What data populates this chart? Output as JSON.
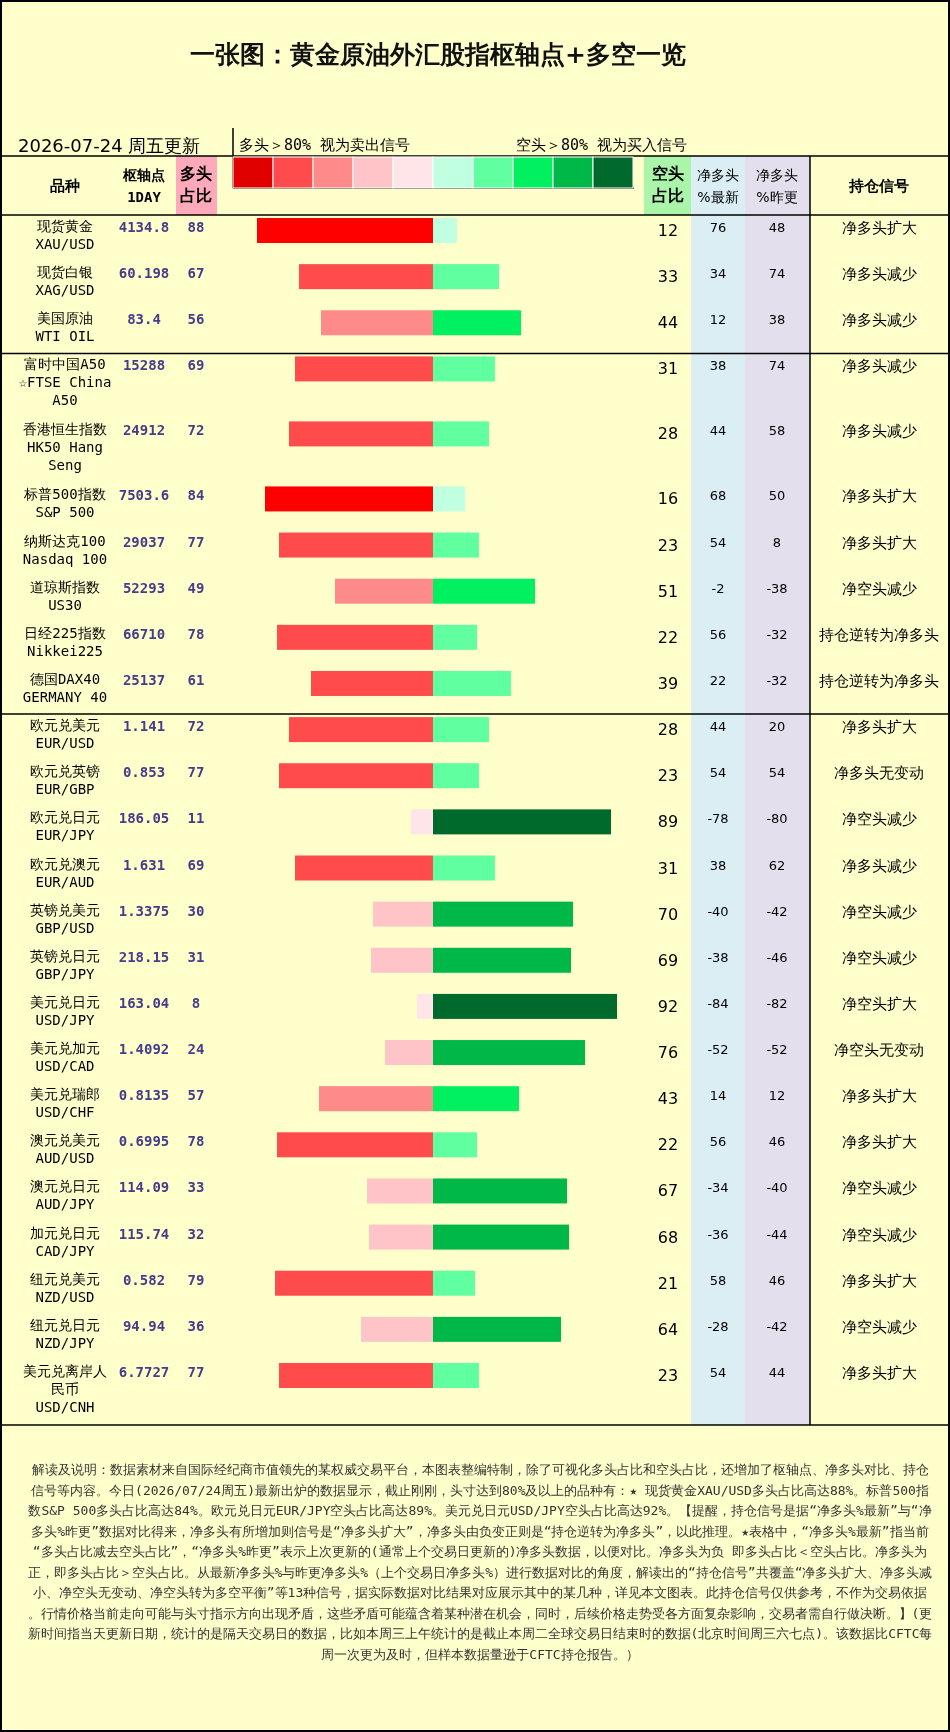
{
  "chart_data": [
    {
      "type": "bar",
      "orientation": "horizontal",
      "title": "一张图：黄金原油外汇股指枢轴点+多空一览",
      "subtitle": "2026-07-24 周五更新",
      "ylabel": "品种",
      "categories": [
        "现货黄金\nXAU/USD",
        "现货白银\nXAG/USD",
        "美国原油\nWTI OIL",
        "富时中国A50\n☆FTSE China A50",
        "香港恒生指数\nHK50 Hang Seng",
        "标普500指数\nS&P 500",
        "纳斯达克100\nNasdaq 100",
        "道琼斯指数\nUS30",
        "日经225指数\nNikkei225",
        "德国DAX40\nGERMANY 40",
        "欧元兑美元\nEUR/USD",
        "欧元兑英镑\nEUR/GBP",
        "欧元兑日元\nEUR/JPY",
        "欧元兑澳元\nEUR/AUD",
        "英镑兑美元\nGBP/USD",
        "英镑兑日元\nGBP/JPY",
        "美元兑日元\nUSD/JPY",
        "美元兑加元\nUSD/CAD",
        "美元兑瑞郎\nUSD/CHF",
        "澳元兑美元\nAUD/USD",
        "澳元兑日元\nAUD/JPY",
        "加元兑日元\nCAD/JPY",
        "纽元兑美元\nNZD/USD",
        "纽元兑日元\nNZD/JPY",
        "美元兑离岸人民币\nUSD/CNH"
      ],
      "tick_labels": "y",
      "data_labels": true,
      "series": [
        {
          "name": "多头占比",
          "values": [
            88,
            67,
            56,
            69,
            72,
            84,
            77,
            49,
            78,
            61,
            72,
            77,
            11,
            69,
            30,
            31,
            8,
            24,
            57,
            78,
            33,
            32,
            79,
            36,
            77
          ],
          "colors": [
            "#ff0000",
            "#ff4b4b",
            "#ff8a8a",
            "#ff4b4b",
            "#ff4b4b",
            "#ff0000",
            "#ff4b4b",
            "#ff8a8a",
            "#ff4b4b",
            "#ff4b4b",
            "#ff4b4b",
            "#ff4b4b",
            "#ffe4ea",
            "#ff4b4b",
            "#ffc4c8",
            "#ffc4c8",
            "#ffe4ea",
            "#ffc4c8",
            "#ff8a8a",
            "#ff4b4b",
            "#ffc4c8",
            "#ffc4c8",
            "#ff4b4b",
            "#ffc4c8",
            "#ff4b4b"
          ]
        }
      ],
      "annotations": [
        "多头＞80% 视为卖出信号",
        "解读及说明：数据素材来自国际经纪商市值领先的某权威交易平台，本图表整编特制，除了可视化多头占比和空头占比，还增加了枢轴点、净多头对比、持仓信号等内容。今日(2026/07/24周五)最新出炉的数据显示，截止刚刚，头寸达到80%及以上的品种有：★ 现货黄金XAU/USD多头占比高达88%。标普500指数S&P 500多头占比高达84%。欧元兑日元EUR/JPY空头占比高达89%。美元兑日元USD/JPY空头占比高达92%。【提醒，持仓信号是据“净多头%最新”与“净多头%昨更”数据对比得来，净多头有所增加则信号是“净多头扩大”，净多头由负变正则是“持仓逆转为净多头”，以此推理。★表格中，“净多头%最新”指当前“多头占比减去空头占比”，“净多头%昨更”表示上次更新的(通常上个交易日更新的)净多头数据，以便对比。净多头为负 即多头占比＜空头占比。净多头为正，即多头占比＞空头占比。从最新净多头%与昨更净多头%（上个交易日净多头%）进行数据对比的角度，解读出的“持仓信号”共覆盖“净多头扩大、净多头减小、净空头无变动、净空头转为多空平衡”等13种信号，据实际数据对比结果对应展示其中的某几种，详见本文图表。此持仓信号仅供参考，不作为交易依据。行情价格当前走向可能与头寸指示方向出现矛盾，这些矛盾可能蕴含着某种潜在机会，同时，后续价格走势受各方面复杂影响，交易者需自行做决断。】(更新时间指当天更新日期，统计的是隔天交易日的数据，比如本周三上午统计的是截止本周二全球交易日结束时的数据(北京时间周三六七点)。该数据比CFTC每周一次更为及时，但样本数据量逊于CFTC持仓报告。）"
      ]
    },
    {
      "type": "other",
      "title": "枢轴点1DAY",
      "values": [
        4134.8,
        60.198,
        83.4,
        15288,
        24912,
        7503.6,
        29037,
        52293,
        66710,
        25137,
        1.141,
        0.853,
        186.05,
        1.631,
        1.3375,
        218.15,
        163.04,
        1.4092,
        0.8135,
        0.6995,
        114.09,
        115.74,
        0.582,
        94.94,
        6.7727
      ],
      "data_labels": true
    },
    {
      "type": "bar",
      "orientation": "horizontal",
      "categories": [
        "现货黄金\nXAU/USD",
        "现货白银\nXAG/USD",
        "美国原油\nWTI OIL",
        "富时中国A50\n☆FTSE China A50",
        "香港恒生指数\nHK50 Hang Seng",
        "标普500指数\nS&P 500",
        "纳斯达克100\nNasdaq 100",
        "道琼斯指数\nUS30",
        "日经225指数\nNikkei225",
        "德国DAX40\nGERMANY 40",
        "欧元兑美元\nEUR/USD",
        "欧元兑英镑\nEUR/GBP",
        "欧元兑日元\nEUR/JPY",
        "欧元兑澳元\nEUR/AUD",
        "英镑兑美元\nGBP/USD",
        "英镑兑日元\nGBP/JPY",
        "美元兑日元\nUSD/JPY",
        "美元兑加元\nUSD/CAD",
        "美元兑瑞郎\nUSD/CHF",
        "澳元兑美元\nAUD/USD",
        "澳元兑日元\nAUD/JPY",
        "加元兑日元\nCAD/JPY",
        "纽元兑美元\nNZD/USD",
        "纽元兑日元\nNZD/JPY",
        "美元兑离岸人民币\nUSD/CNH"
      ],
      "tick_labels": false,
      "data_labels": true,
      "series": [
        {
          "name": "空头占比",
          "values": [
            12,
            33,
            44,
            31,
            28,
            16,
            23,
            51,
            22,
            39,
            28,
            23,
            89,
            31,
            70,
            69,
            92,
            76,
            43,
            22,
            67,
            68,
            21,
            64,
            23
          ],
          "colors": [
            "#c0ffe0",
            "#60ffa0",
            "#00f060",
            "#60ffa0",
            "#60ffa0",
            "#c0ffe0",
            "#60ffa0",
            "#00f060",
            "#60ffa0",
            "#60ffa0",
            "#60ffa0",
            "#60ffa0",
            "#006a2c",
            "#60ffa0",
            "#00b848",
            "#00b848",
            "#006a2c",
            "#00b848",
            "#00f060",
            "#60ffa0",
            "#00b848",
            "#00b848",
            "#60ffa0",
            "#00b848",
            "#60ffa0"
          ]
        }
      ],
      "annotations": [
        "空头＞80% 视为买入信号"
      ]
    },
    {
      "type": "other",
      "title": "净多头%最新",
      "values": [
        76,
        34,
        12,
        38,
        44,
        68,
        54,
        -2,
        56,
        22,
        44,
        54,
        -78,
        38,
        -40,
        -38,
        -84,
        -52,
        14,
        56,
        -34,
        -36,
        58,
        -28,
        54
      ],
      "data_labels": true
    },
    {
      "type": "other",
      "title": "净多头%昨更",
      "values": [
        48,
        74,
        38,
        74,
        58,
        50,
        8,
        -38,
        -32,
        -32,
        20,
        54,
        -80,
        62,
        -42,
        -46,
        -82,
        -52,
        12,
        46,
        -40,
        -44,
        46,
        -42,
        44
      ],
      "data_labels": true
    },
    {
      "type": "other",
      "title": "持仓信号",
      "annotations": [
        "净多头扩大",
        "净多头减少",
        "净多头减少",
        "净多头减少",
        "净多头减少",
        "净多头扩大",
        "净多头扩大",
        "净空头减少",
        "持仓逆转为净多头",
        "持仓逆转为净多头",
        "净多头扩大",
        "净多头无变动",
        "净空头减少",
        "净多头减少",
        "净空头减少",
        "净空头减少",
        "净空头扩大",
        "净空头无变动",
        "净多头扩大",
        "净多头扩大",
        "净空头减少",
        "净空头减少",
        "净多头扩大",
        "净空头减少",
        "净多头扩大"
      ]
    }
  ]
}
